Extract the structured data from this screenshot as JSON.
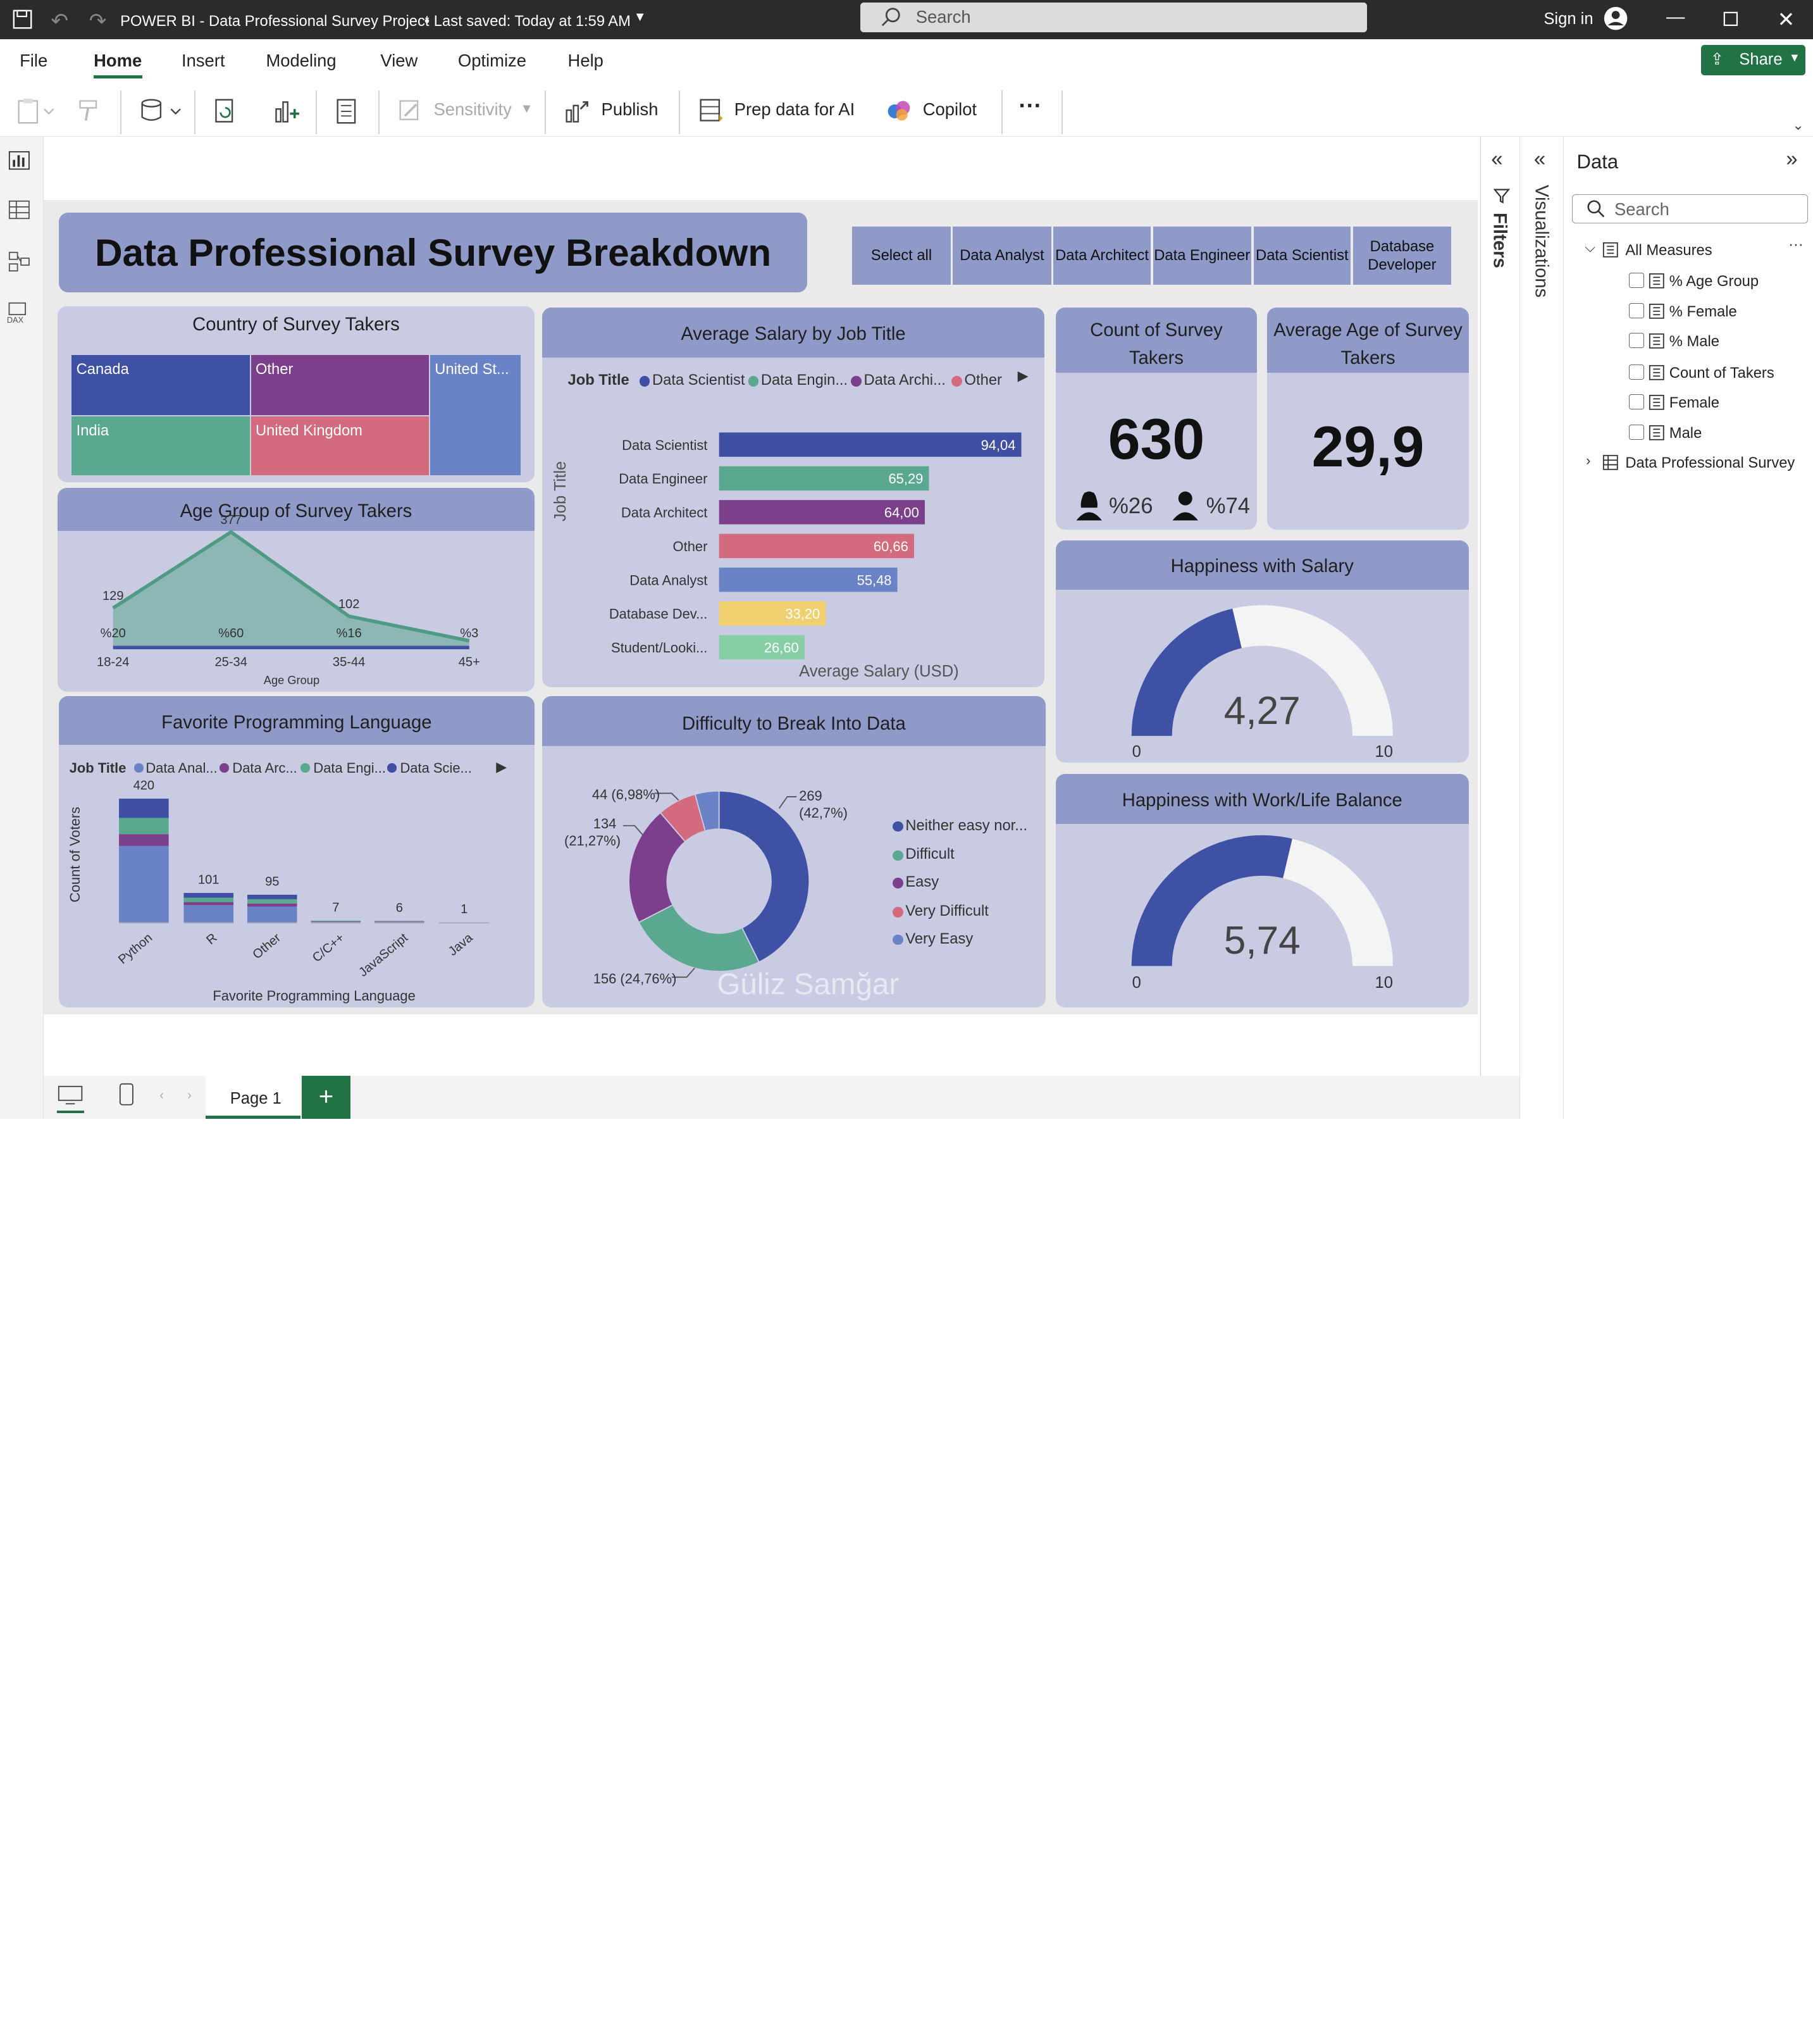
{
  "titlebar": {
    "app_title": "POWER BI - Data Professional Survey Project",
    "save_status": "• Last saved: Today at 1:59 AM",
    "search_placeholder": "Search",
    "sign_in": "Sign in"
  },
  "menu": {
    "tabs": [
      "File",
      "Home",
      "Insert",
      "Modeling",
      "View",
      "Optimize",
      "Help"
    ],
    "share": "Share"
  },
  "ribbon": {
    "sensitivity": "Sensitivity",
    "publish": "Publish",
    "prep_data": "Prep data for AI",
    "copilot": "Copilot"
  },
  "report": {
    "title": "Data Professional Survey Breakdown",
    "slicer": [
      "Select all",
      "Data Analyst",
      "Data Architect",
      "Data Engineer",
      "Data Scientist",
      "Database Developer"
    ],
    "watermark": "Güliz Samğar"
  },
  "country": {
    "title": "Country of Survey Takers",
    "cells": [
      "Canada",
      "Other",
      "United St...",
      "India",
      "United Kingdom"
    ]
  },
  "age_group": {
    "title": "Age Group of Survey Takers",
    "xlabel": "Age Group"
  },
  "salary": {
    "title": "Average Salary by Job Title",
    "legend_title": "Job Title",
    "legend": [
      "Data Scientist",
      "Data Engin...",
      "Data Archi...",
      "Other"
    ],
    "xlabel": "Average Salary (USD)",
    "ylabel": "Job Title"
  },
  "count_card": {
    "title": "Count of Survey Takers",
    "value": "630",
    "female": "%26",
    "male": "%74"
  },
  "avg_age_card": {
    "title": "Average Age of Survey Takers",
    "value": "29,9"
  },
  "happy_salary": {
    "title": "Happiness with Salary",
    "value": "4,27",
    "min": "0",
    "max": "10"
  },
  "happy_wlb": {
    "title": "Happiness with Work/Life Balance",
    "value": "5,74",
    "min": "0",
    "max": "10"
  },
  "language": {
    "title": "Favorite Programming Language",
    "legend_title": "Job Title",
    "legend": [
      "Data Anal...",
      "Data Arc...",
      "Data Engi...",
      "Data Scie..."
    ],
    "xlabel": "Favorite Programming Language",
    "ylabel": "Count of Voters"
  },
  "difficulty": {
    "title": "Difficulty to Break Into Data",
    "legend": [
      "Neither easy nor...",
      "Difficult",
      "Easy",
      "Very Difficult",
      "Very Easy"
    ],
    "labels": [
      "269",
      "(42,7%)",
      "156 (24,76%)",
      "134",
      "(21,27%)",
      "44 (6,98%)"
    ]
  },
  "datapane": {
    "title": "Data",
    "search_placeholder": "Search",
    "group": "All Measures",
    "fields": [
      "% Age Group",
      "% Female",
      "% Male",
      "Count of Takers",
      "Female",
      "Male"
    ],
    "table": "Data Professional Survey"
  },
  "panes": {
    "filters": "Filters",
    "visualizations": "Visualizations"
  },
  "pages": {
    "page1": "Page 1"
  },
  "chart_data": [
    {
      "type": "area",
      "title": "Age Group of Survey Takers",
      "xlabel": "Age Group",
      "categories": [
        "18-24",
        "25-34",
        "35-44",
        "45+"
      ],
      "values": [
        129,
        377,
        102,
        22
      ],
      "percent_labels": [
        "%20",
        "%60",
        "%16",
        "%3"
      ],
      "value_labels": [
        "129",
        "377",
        "102",
        ""
      ],
      "ylim": [
        0,
        400
      ]
    },
    {
      "type": "bar",
      "title": "Average Salary by Job Title",
      "orientation": "horizontal",
      "xlabel": "Average Salary (USD)",
      "ylabel": "Job Title",
      "categories": [
        "Data Scientist",
        "Data Engineer",
        "Data Architect",
        "Other",
        "Data Analyst",
        "Database Dev...",
        "Student/Looki..."
      ],
      "values": [
        94.04,
        65.29,
        64.0,
        60.66,
        55.48,
        33.2,
        26.6
      ],
      "value_labels": [
        "94,04",
        "65,29",
        "64,00",
        "60,66",
        "55,48",
        "33,20",
        "26,60"
      ],
      "colors": [
        "#3f4fa3",
        "#5aa88f",
        "#7b3f8c",
        "#d46a7d",
        "#6a83c6",
        "#f0cf6e",
        "#86cfa4"
      ],
      "xlim": [
        0,
        100
      ]
    },
    {
      "type": "bar",
      "title": "Favorite Programming Language",
      "stacked": true,
      "xlabel": "Favorite Programming Language",
      "ylabel": "Count of Voters",
      "categories": [
        "Python",
        "R",
        "Other",
        "C/C++",
        "JavaScript",
        "Java"
      ],
      "totals": [
        420,
        101,
        95,
        7,
        6,
        1
      ],
      "series": [
        {
          "name": "Data Anal...",
          "values": [
            260,
            60,
            55,
            3,
            3,
            1
          ]
        },
        {
          "name": "Data Arc...",
          "values": [
            40,
            10,
            10,
            1,
            1,
            0
          ]
        },
        {
          "name": "Data Engi...",
          "values": [
            55,
            15,
            15,
            2,
            1,
            0
          ]
        },
        {
          "name": "Data Scie...",
          "values": [
            65,
            16,
            15,
            1,
            1,
            0
          ]
        }
      ],
      "ylim": [
        0,
        450
      ]
    },
    {
      "type": "pie",
      "title": "Difficulty to Break Into Data",
      "donut": true,
      "categories": [
        "Neither easy nor...",
        "Difficult",
        "Easy",
        "Very Difficult",
        "Very Easy"
      ],
      "values": [
        269,
        156,
        134,
        44,
        27
      ],
      "colors": [
        "#3f51a5",
        "#5aa88f",
        "#7b3f8c",
        "#d46a7d",
        "#6a83c6"
      ]
    },
    {
      "type": "gauge",
      "title": "Happiness with Salary",
      "value": 4.27,
      "min": 0,
      "max": 10
    },
    {
      "type": "gauge",
      "title": "Happiness with Work/Life Balance",
      "value": 5.74,
      "min": 0,
      "max": 10
    }
  ],
  "colors": {
    "card_bg": "#c9cbe2",
    "card_header": "#8f9ac9",
    "accent": "#3f51a5",
    "share_green": "#217346"
  }
}
